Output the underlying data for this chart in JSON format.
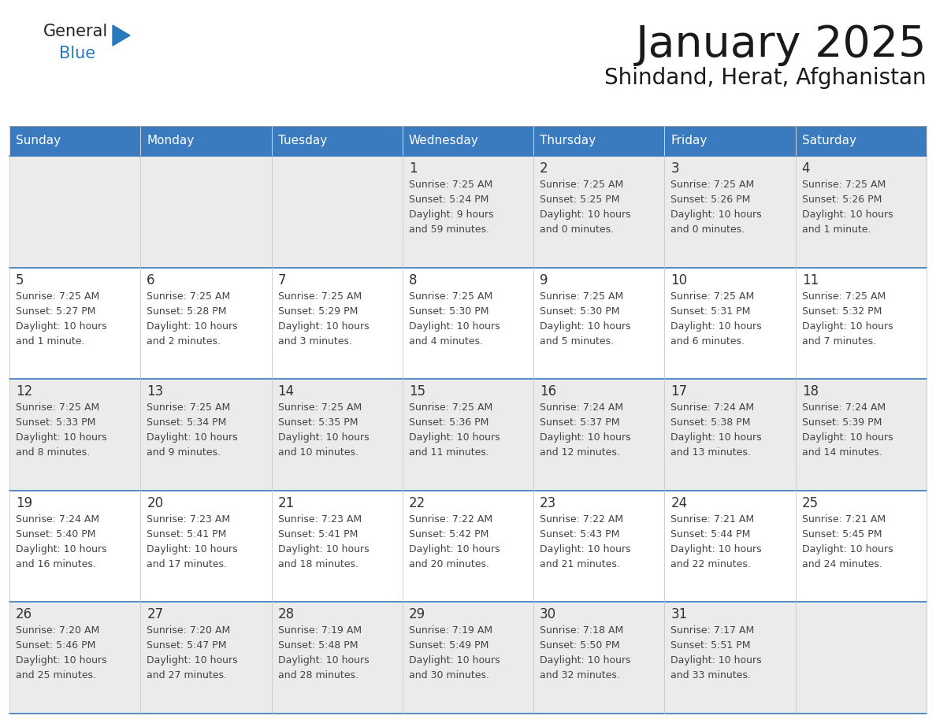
{
  "title": "January 2025",
  "subtitle": "Shindand, Herat, Afghanistan",
  "header_bg": "#3a7abf",
  "header_text": "#ffffff",
  "day_names": [
    "Sunday",
    "Monday",
    "Tuesday",
    "Wednesday",
    "Thursday",
    "Friday",
    "Saturday"
  ],
  "cell_bg_even": "#ebebeb",
  "cell_bg_odd": "#ffffff",
  "cell_border": "#3a7abf",
  "cell_border_light": "#cccccc",
  "text_color": "#444444",
  "day_num_color": "#333333",
  "logo_general_color": "#222222",
  "logo_blue_color": "#2878be",
  "logo_triangle_color": "#2878be",
  "weeks": [
    [
      {
        "day": null,
        "sunrise": null,
        "sunset": null,
        "daylight": null
      },
      {
        "day": null,
        "sunrise": null,
        "sunset": null,
        "daylight": null
      },
      {
        "day": null,
        "sunrise": null,
        "sunset": null,
        "daylight": null
      },
      {
        "day": 1,
        "sunrise": "7:25 AM",
        "sunset": "5:24 PM",
        "daylight": "9 hours\nand 59 minutes."
      },
      {
        "day": 2,
        "sunrise": "7:25 AM",
        "sunset": "5:25 PM",
        "daylight": "10 hours\nand 0 minutes."
      },
      {
        "day": 3,
        "sunrise": "7:25 AM",
        "sunset": "5:26 PM",
        "daylight": "10 hours\nand 0 minutes."
      },
      {
        "day": 4,
        "sunrise": "7:25 AM",
        "sunset": "5:26 PM",
        "daylight": "10 hours\nand 1 minute."
      }
    ],
    [
      {
        "day": 5,
        "sunrise": "7:25 AM",
        "sunset": "5:27 PM",
        "daylight": "10 hours\nand 1 minute."
      },
      {
        "day": 6,
        "sunrise": "7:25 AM",
        "sunset": "5:28 PM",
        "daylight": "10 hours\nand 2 minutes."
      },
      {
        "day": 7,
        "sunrise": "7:25 AM",
        "sunset": "5:29 PM",
        "daylight": "10 hours\nand 3 minutes."
      },
      {
        "day": 8,
        "sunrise": "7:25 AM",
        "sunset": "5:30 PM",
        "daylight": "10 hours\nand 4 minutes."
      },
      {
        "day": 9,
        "sunrise": "7:25 AM",
        "sunset": "5:30 PM",
        "daylight": "10 hours\nand 5 minutes."
      },
      {
        "day": 10,
        "sunrise": "7:25 AM",
        "sunset": "5:31 PM",
        "daylight": "10 hours\nand 6 minutes."
      },
      {
        "day": 11,
        "sunrise": "7:25 AM",
        "sunset": "5:32 PM",
        "daylight": "10 hours\nand 7 minutes."
      }
    ],
    [
      {
        "day": 12,
        "sunrise": "7:25 AM",
        "sunset": "5:33 PM",
        "daylight": "10 hours\nand 8 minutes."
      },
      {
        "day": 13,
        "sunrise": "7:25 AM",
        "sunset": "5:34 PM",
        "daylight": "10 hours\nand 9 minutes."
      },
      {
        "day": 14,
        "sunrise": "7:25 AM",
        "sunset": "5:35 PM",
        "daylight": "10 hours\nand 10 minutes."
      },
      {
        "day": 15,
        "sunrise": "7:25 AM",
        "sunset": "5:36 PM",
        "daylight": "10 hours\nand 11 minutes."
      },
      {
        "day": 16,
        "sunrise": "7:24 AM",
        "sunset": "5:37 PM",
        "daylight": "10 hours\nand 12 minutes."
      },
      {
        "day": 17,
        "sunrise": "7:24 AM",
        "sunset": "5:38 PM",
        "daylight": "10 hours\nand 13 minutes."
      },
      {
        "day": 18,
        "sunrise": "7:24 AM",
        "sunset": "5:39 PM",
        "daylight": "10 hours\nand 14 minutes."
      }
    ],
    [
      {
        "day": 19,
        "sunrise": "7:24 AM",
        "sunset": "5:40 PM",
        "daylight": "10 hours\nand 16 minutes."
      },
      {
        "day": 20,
        "sunrise": "7:23 AM",
        "sunset": "5:41 PM",
        "daylight": "10 hours\nand 17 minutes."
      },
      {
        "day": 21,
        "sunrise": "7:23 AM",
        "sunset": "5:41 PM",
        "daylight": "10 hours\nand 18 minutes."
      },
      {
        "day": 22,
        "sunrise": "7:22 AM",
        "sunset": "5:42 PM",
        "daylight": "10 hours\nand 20 minutes."
      },
      {
        "day": 23,
        "sunrise": "7:22 AM",
        "sunset": "5:43 PM",
        "daylight": "10 hours\nand 21 minutes."
      },
      {
        "day": 24,
        "sunrise": "7:21 AM",
        "sunset": "5:44 PM",
        "daylight": "10 hours\nand 22 minutes."
      },
      {
        "day": 25,
        "sunrise": "7:21 AM",
        "sunset": "5:45 PM",
        "daylight": "10 hours\nand 24 minutes."
      }
    ],
    [
      {
        "day": 26,
        "sunrise": "7:20 AM",
        "sunset": "5:46 PM",
        "daylight": "10 hours\nand 25 minutes."
      },
      {
        "day": 27,
        "sunrise": "7:20 AM",
        "sunset": "5:47 PM",
        "daylight": "10 hours\nand 27 minutes."
      },
      {
        "day": 28,
        "sunrise": "7:19 AM",
        "sunset": "5:48 PM",
        "daylight": "10 hours\nand 28 minutes."
      },
      {
        "day": 29,
        "sunrise": "7:19 AM",
        "sunset": "5:49 PM",
        "daylight": "10 hours\nand 30 minutes."
      },
      {
        "day": 30,
        "sunrise": "7:18 AM",
        "sunset": "5:50 PM",
        "daylight": "10 hours\nand 32 minutes."
      },
      {
        "day": 31,
        "sunrise": "7:17 AM",
        "sunset": "5:51 PM",
        "daylight": "10 hours\nand 33 minutes."
      },
      {
        "day": null,
        "sunrise": null,
        "sunset": null,
        "daylight": null
      }
    ]
  ]
}
